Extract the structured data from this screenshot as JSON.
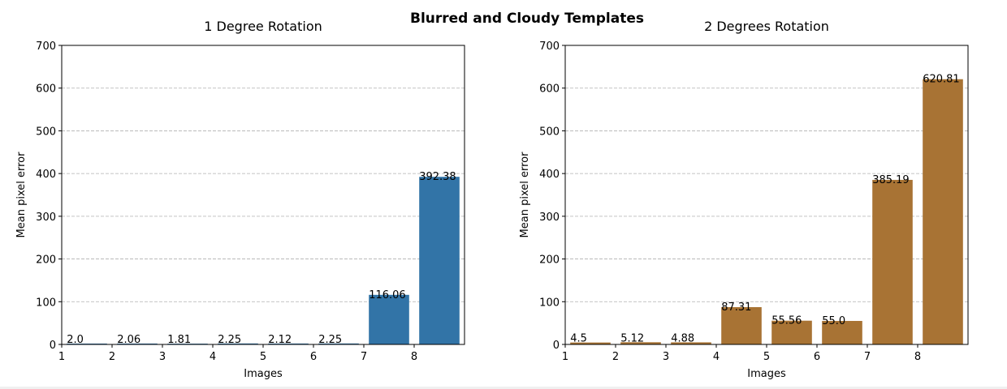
{
  "figure": {
    "suptitle": "Blurred and Cloudy Templates"
  },
  "chart_data": [
    {
      "type": "bar",
      "title": "1 Degree Rotation",
      "xlabel": "Images",
      "ylabel": "Mean pixel error",
      "categories": [
        1,
        2,
        3,
        4,
        5,
        6,
        7,
        8
      ],
      "values": [
        2.0,
        2.06,
        1.81,
        2.25,
        2.12,
        2.25,
        116.06,
        392.38
      ],
      "value_labels": [
        "2.0",
        "2.06",
        "1.81",
        "2.25",
        "2.12",
        "2.25",
        "116.06",
        "392.38"
      ],
      "ylim": [
        0,
        700
      ],
      "xlim": [
        1,
        9
      ],
      "yticks": [
        0,
        100,
        200,
        300,
        400,
        500,
        600,
        700
      ],
      "xticks": [
        1,
        2,
        3,
        4,
        5,
        6,
        7,
        8
      ],
      "grid": "y-dashed",
      "color": "#3274a7"
    },
    {
      "type": "bar",
      "title": "2 Degrees Rotation",
      "xlabel": "Images",
      "ylabel": "Mean pixel error",
      "categories": [
        1,
        2,
        3,
        4,
        5,
        6,
        7,
        8
      ],
      "values": [
        4.5,
        5.12,
        4.88,
        87.31,
        55.56,
        55.0,
        385.19,
        620.81
      ],
      "value_labels": [
        "4.5",
        "5.12",
        "4.88",
        "87.31",
        "55.56",
        "55.0",
        "385.19",
        "620.81"
      ],
      "ylim": [
        0,
        700
      ],
      "xlim": [
        1,
        9
      ],
      "yticks": [
        0,
        100,
        200,
        300,
        400,
        500,
        600,
        700
      ],
      "xticks": [
        1,
        2,
        3,
        4,
        5,
        6,
        7,
        8
      ],
      "grid": "y-dashed",
      "color": "#a87334"
    }
  ]
}
